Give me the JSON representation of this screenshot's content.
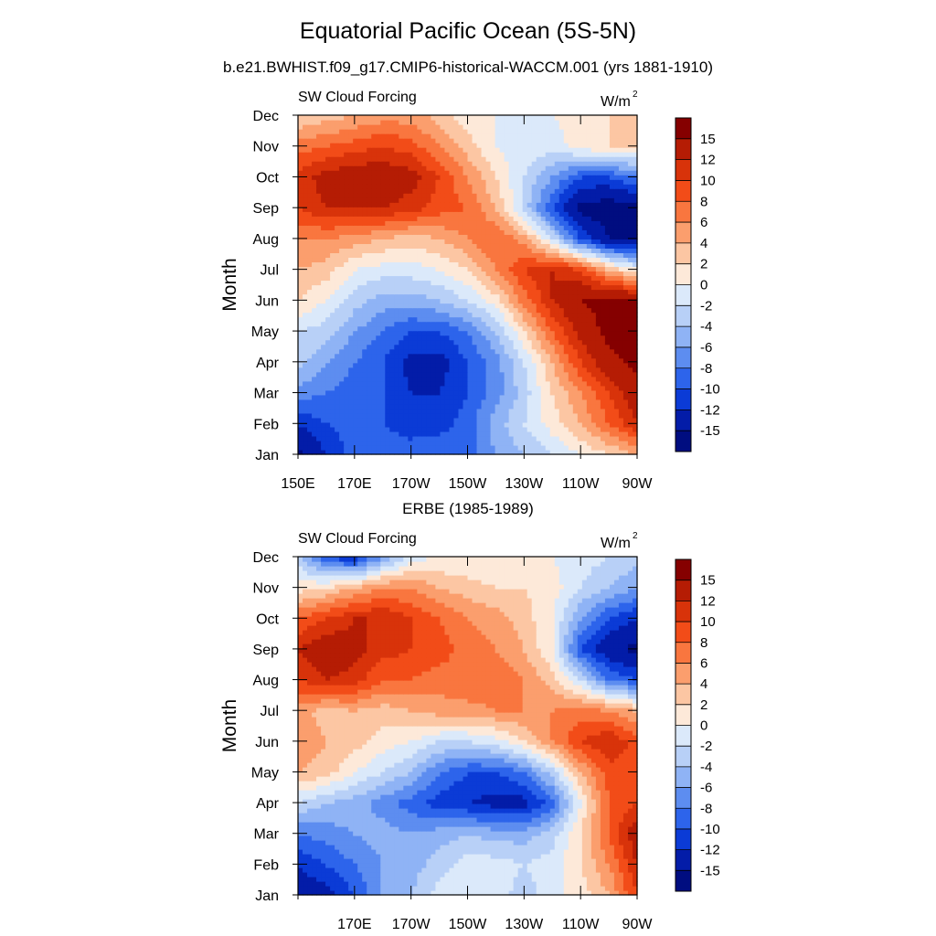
{
  "figure": {
    "title": "Equatorial Pacific Ocean (5S-5N)",
    "subtitle": "b.e21.BWHIST.f09_g17.CMIP6-historical-WACCM.001 (yrs 1881-1910)"
  },
  "colorbar": {
    "levels": [
      "15",
      "12",
      "10",
      "8",
      "6",
      "4",
      "2",
      "0",
      "-2",
      "-4",
      "-6",
      "-8",
      "-10",
      "-12",
      "-15"
    ],
    "colors": [
      "#850000",
      "#b51c04",
      "#d8330a",
      "#f24c18",
      "#f9763f",
      "#fb9e6d",
      "#fcc6a3",
      "#fde9d9",
      "#dbe9fa",
      "#b8d0f7",
      "#8fb3f5",
      "#5d8df0",
      "#2d64eb",
      "#0b3bd6",
      "#031ca8",
      "#000d80"
    ]
  },
  "chart_data": [
    {
      "type": "heatmap",
      "title": "",
      "left_label": "SW Cloud Forcing",
      "units_base": "W/m",
      "units_exp": "2",
      "ylabel": "Month",
      "xlabel": "",
      "xlim": [
        150,
        270
      ],
      "x_ticks": [
        150,
        170,
        190,
        210,
        230,
        250,
        270
      ],
      "x_tick_labels": [
        "150E",
        "170E",
        "170W",
        "150W",
        "130W",
        "110W",
        "90W"
      ],
      "y_tick_labels": [
        "Jan",
        "Feb",
        "Mar",
        "Apr",
        "May",
        "Jun",
        "Jul",
        "Aug",
        "Sep",
        "Oct",
        "Nov",
        "Dec"
      ],
      "x": [
        150,
        160,
        170,
        180,
        190,
        200,
        210,
        220,
        230,
        240,
        250,
        260,
        270
      ],
      "y": [
        "Jan",
        "Feb",
        "Mar",
        "Apr",
        "May",
        "Jun",
        "Jul",
        "Aug",
        "Sep",
        "Oct",
        "Nov",
        "Dec"
      ],
      "z": [
        [
          -16,
          -12,
          -9,
          -9,
          -9,
          -8,
          -9,
          -6,
          -4,
          -2,
          0,
          2,
          4
        ],
        [
          -12,
          -10,
          -9,
          -10,
          -11,
          -11,
          -9,
          -5,
          -2,
          1,
          4,
          8,
          12
        ],
        [
          -7,
          -8,
          -9,
          -10,
          -12,
          -12,
          -10,
          -7,
          -3,
          2,
          6,
          10,
          14
        ],
        [
          -3,
          -6,
          -8,
          -10,
          -13,
          -13,
          -10,
          -7,
          -2,
          4,
          10,
          14,
          16
        ],
        [
          -2,
          -3,
          -6,
          -8,
          -10,
          -10,
          -8,
          -4,
          2,
          8,
          13,
          16,
          17
        ],
        [
          2,
          0,
          -3,
          -5,
          -5,
          -4,
          -2,
          1,
          7,
          12,
          15,
          16,
          16
        ],
        [
          4,
          3,
          0,
          -1,
          -1,
          0,
          2,
          6,
          10,
          12,
          10,
          4,
          0
        ],
        [
          6,
          6,
          5,
          4,
          3,
          4,
          6,
          8,
          5,
          -2,
          -10,
          -15,
          -15
        ],
        [
          10,
          12,
          12,
          12,
          11,
          9,
          8,
          4,
          -3,
          -10,
          -16,
          -17,
          -16
        ],
        [
          11,
          13,
          14,
          14,
          13,
          10,
          6,
          2,
          -2,
          -6,
          -10,
          -10,
          -8
        ],
        [
          7,
          8,
          9,
          10,
          9,
          6,
          3,
          0,
          -1,
          -1,
          1,
          2,
          2
        ],
        [
          2,
          3,
          4,
          5,
          5,
          3,
          1,
          0,
          -1,
          0,
          1,
          2,
          2
        ]
      ]
    },
    {
      "type": "heatmap",
      "title": "ERBE (1985-1989)",
      "left_label": "SW Cloud Forcing",
      "units_base": "W/m",
      "units_exp": "2",
      "ylabel": "Month",
      "xlabel": "",
      "xlim": [
        150,
        270
      ],
      "x_ticks": [
        150,
        170,
        190,
        210,
        230,
        250,
        270
      ],
      "x_tick_labels": [
        "",
        "170E",
        "170W",
        "150W",
        "130W",
        "110W",
        "90W"
      ],
      "y_tick_labels": [
        "Jan",
        "Feb",
        "Mar",
        "Apr",
        "May",
        "Jun",
        "Jul",
        "Aug",
        "Sep",
        "Oct",
        "Nov",
        "Dec"
      ],
      "x": [
        150,
        160,
        170,
        180,
        190,
        200,
        210,
        220,
        230,
        240,
        250,
        260,
        270
      ],
      "y": [
        "Jan",
        "Feb",
        "Mar",
        "Apr",
        "May",
        "Jun",
        "Jul",
        "Aug",
        "Sep",
        "Oct",
        "Nov",
        "Dec"
      ],
      "z": [
        [
          -14,
          -13,
          -10,
          -6,
          -4,
          -1,
          0,
          -1,
          -3,
          -1,
          1,
          4,
          10
        ],
        [
          -12,
          -10,
          -8,
          -6,
          -5,
          -3,
          -1,
          -1,
          -2,
          -1,
          2,
          6,
          12
        ],
        [
          -8,
          -7,
          -6,
          -5,
          -6,
          -5,
          -4,
          -5,
          -5,
          -3,
          2,
          8,
          14
        ],
        [
          -2,
          -4,
          -5,
          -7,
          -9,
          -11,
          -12,
          -13,
          -13,
          -9,
          0,
          8,
          10
        ],
        [
          4,
          3,
          0,
          -2,
          -4,
          -8,
          -10,
          -10,
          -8,
          -3,
          4,
          9,
          9
        ],
        [
          6,
          4,
          3,
          1,
          0,
          -2,
          -2,
          -1,
          2,
          6,
          10,
          12,
          9
        ],
        [
          5,
          3,
          4,
          3,
          4,
          5,
          5,
          6,
          6,
          6,
          7,
          6,
          4
        ],
        [
          10,
          12,
          11,
          8,
          8,
          7,
          8,
          8,
          6,
          3,
          -2,
          -8,
          -10
        ],
        [
          12,
          14,
          13,
          11,
          10,
          9,
          7,
          6,
          4,
          0,
          -10,
          -14,
          -16
        ],
        [
          8,
          10,
          12,
          12,
          10,
          8,
          6,
          5,
          3,
          0,
          -6,
          -10,
          -12
        ],
        [
          1,
          2,
          4,
          6,
          6,
          4,
          3,
          2,
          2,
          1,
          -2,
          -4,
          -6
        ],
        [
          -3,
          -10,
          -12,
          -6,
          -1,
          0,
          0,
          0,
          0,
          0,
          -1,
          -2,
          -3
        ]
      ]
    }
  ]
}
